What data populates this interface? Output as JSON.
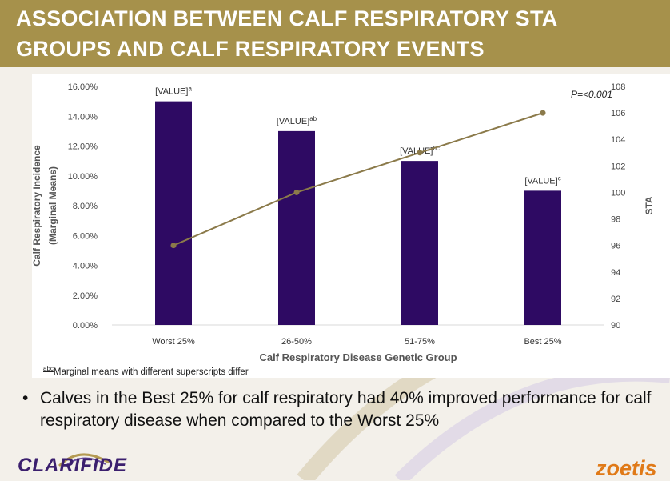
{
  "title": "ASSOCIATION BETWEEN CALF RESPIRATORY STA GROUPS AND CALF RESPIRATORY EVENTS",
  "chart_data": {
    "type": "bar",
    "categories": [
      "Worst 25%",
      "26-50%",
      "51-75%",
      "Best 25%"
    ],
    "series": [
      {
        "values": [
          0.15,
          0.13,
          0.11,
          0.09
        ],
        "data_labels": [
          "[VALUE]",
          "[VALUE]",
          "[VALUE]",
          "[VALUE]"
        ],
        "superscripts": [
          "a",
          "ab",
          "bc",
          "c"
        ],
        "color": "#2e0a63"
      },
      {
        "type": "line",
        "axis": "right",
        "values": [
          96,
          100,
          103,
          106
        ],
        "color": "#8b7a4a"
      }
    ],
    "xlabel": "Calf Respiratory Disease Genetic Group",
    "ylabel": "Calf Respiratory Incidence (Marginal Means)",
    "y2label": "STA",
    "ylim": [
      0,
      0.16
    ],
    "y2lim": [
      90,
      108
    ],
    "yticks": [
      "0.00%",
      "2.00%",
      "4.00%",
      "6.00%",
      "8.00%",
      "10.00%",
      "12.00%",
      "14.00%",
      "16.00%"
    ],
    "y2ticks": [
      "90",
      "92",
      "94",
      "96",
      "98",
      "100",
      "102",
      "104",
      "106",
      "108"
    ],
    "annotation": "P=<0.001",
    "grid": false,
    "legend": "none"
  },
  "footnote": {
    "prefix": "abc",
    "text": "Marginal means with different superscripts differ"
  },
  "bullet": {
    "dot": "•",
    "text": "Calves in the Best 25% for calf respiratory had 40% improved performance for calf respiratory disease when compared to the Worst 25%"
  },
  "logos": {
    "left": "CLARIFIDE",
    "right": "zoetis"
  },
  "colors": {
    "title_bar": "#a6914b",
    "bar": "#2e0a63",
    "line": "#8b7a4a",
    "logo_left": "#3b1f6e",
    "logo_right": "#e07a18"
  }
}
